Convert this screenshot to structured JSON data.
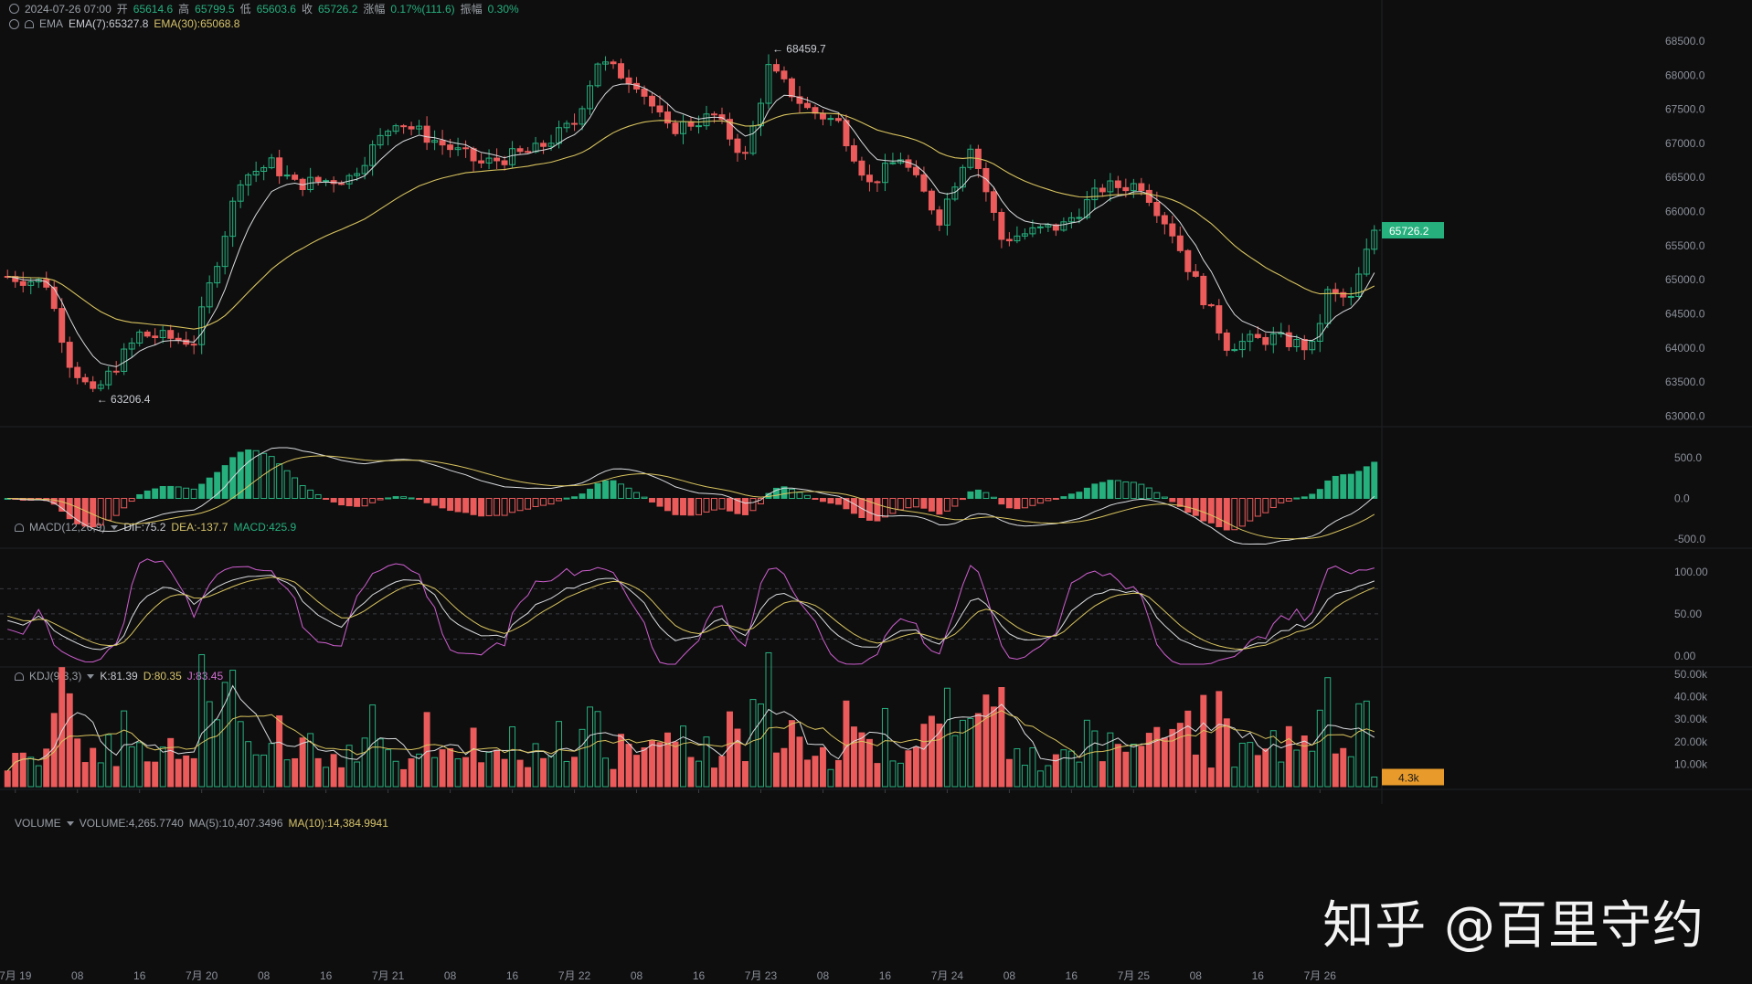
{
  "header": {
    "datetime": "2024-07-26 07:00",
    "open_label": "开",
    "open": "65614.6",
    "high_label": "高",
    "high": "65799.5",
    "low_label": "低",
    "low": "65603.6",
    "close_label": "收",
    "close": "65726.2",
    "change_label": "涨幅",
    "change": "0.17%(111.6)",
    "amplitude_label": "振幅",
    "amplitude": "0.30%"
  },
  "ema_legend": {
    "name": "EMA",
    "ema7": "EMA(7):65327.8",
    "ema30": "EMA(30):65068.8"
  },
  "macd_legend": {
    "name": "MACD(12,26,9)",
    "dif": "DIF:75.2",
    "dea": "DEA:-137.7",
    "macd": "MACD:425.9"
  },
  "kdj_legend": {
    "name": "KDJ(9,3,3)",
    "k": "K:81.39",
    "d": "D:80.35",
    "j": "J:83.45"
  },
  "volume_legend": {
    "name": "VOLUME",
    "vol": "VOLUME:4,265.7740",
    "ma5": "MA(5):10,407.3496",
    "ma10": "MA(10):14,384.9941"
  },
  "price_axis": [
    "68500.0",
    "68000.0",
    "67500.0",
    "67000.0",
    "66500.0",
    "66000.0",
    "65500.0",
    "65000.0",
    "64500.0",
    "64000.0",
    "63500.0",
    "63000.0"
  ],
  "macd_axis": [
    "500.0",
    "0.0",
    "-500.0"
  ],
  "kdj_axis": [
    "100.00",
    "50.00",
    "0.00"
  ],
  "volume_axis": [
    "50.00k",
    "40.00k",
    "30.00k",
    "20.00k",
    "10.00k"
  ],
  "current_price_tag": "65726.2",
  "current_volume_tag": "4.3k",
  "high_marker": "68459.7",
  "low_marker": "63206.4",
  "time_axis": [
    "7月 19",
    "08",
    "16",
    "7月 20",
    "08",
    "16",
    "7月 21",
    "08",
    "16",
    "7月 22",
    "08",
    "16",
    "7月 23",
    "08",
    "16",
    "7月 24",
    "08",
    "16",
    "7月 25",
    "08",
    "16",
    "7月 26"
  ],
  "watermark": "知乎 @百里守约",
  "colors": {
    "up": "#26b07e",
    "down": "#ec5b5b",
    "ema7": "#d9dbdd",
    "ema30": "#d8c35d",
    "j_line": "#cf5fcf",
    "background": "#0e0e0f"
  },
  "chart_data": {
    "type": "candlestick",
    "interval_hours": 1,
    "x_start": "2024-07-18 23:00",
    "x_end": "2024-07-26 07:00",
    "ylim": [
      62900,
      68700
    ],
    "anchors": [
      [
        "2024-07-18 23:00",
        65050
      ],
      [
        "2024-07-19 04:00",
        64950
      ],
      [
        "2024-07-19 07:00",
        63800
      ],
      [
        "2024-07-19 10:00",
        63300
      ],
      [
        "2024-07-19 16:00",
        64200
      ],
      [
        "2024-07-19 23:00",
        64100
      ],
      [
        "2024-07-20 05:00",
        66500
      ],
      [
        "2024-07-20 09:00",
        66700
      ],
      [
        "2024-07-20 12:00",
        66400
      ],
      [
        "2024-07-20 19:00",
        66500
      ],
      [
        "2024-07-21 01:00",
        67350
      ],
      [
        "2024-07-21 05:00",
        67100
      ],
      [
        "2024-07-21 12:00",
        66700
      ],
      [
        "2024-07-21 19:00",
        66900
      ],
      [
        "2024-07-22 00:00",
        67300
      ],
      [
        "2024-07-22 03:00",
        68200
      ],
      [
        "2024-07-22 08:00",
        67900
      ],
      [
        "2024-07-22 12:00",
        67200
      ],
      [
        "2024-07-22 18:00",
        67400
      ],
      [
        "2024-07-22 22:00",
        66800
      ],
      [
        "2024-07-23 01:00",
        68100
      ],
      [
        "2024-07-23 06:00",
        67500
      ],
      [
        "2024-07-23 10:00",
        67300
      ],
      [
        "2024-07-23 14:00",
        66400
      ],
      [
        "2024-07-23 18:00",
        66800
      ],
      [
        "2024-07-23 23:00",
        65900
      ],
      [
        "2024-07-24 03:00",
        67000
      ],
      [
        "2024-07-24 07:00",
        65600
      ],
      [
        "2024-07-24 15:00",
        65800
      ],
      [
        "2024-07-24 20:00",
        66350
      ],
      [
        "2024-07-25 01:00",
        66400
      ],
      [
        "2024-07-25 05:00",
        65700
      ],
      [
        "2024-07-25 07:00",
        65200
      ],
      [
        "2024-07-25 12:00",
        64050
      ],
      [
        "2024-07-25 18:00",
        64150
      ],
      [
        "2024-07-25 23:00",
        64000
      ],
      [
        "2024-07-26 01:00",
        64800
      ],
      [
        "2024-07-26 04:00",
        64700
      ],
      [
        "2024-07-26 07:00",
        65726
      ]
    ],
    "macd_range": [
      -580,
      850
    ],
    "kdj_range": [
      -10,
      125
    ],
    "volume_range": [
      0,
      52000
    ]
  }
}
